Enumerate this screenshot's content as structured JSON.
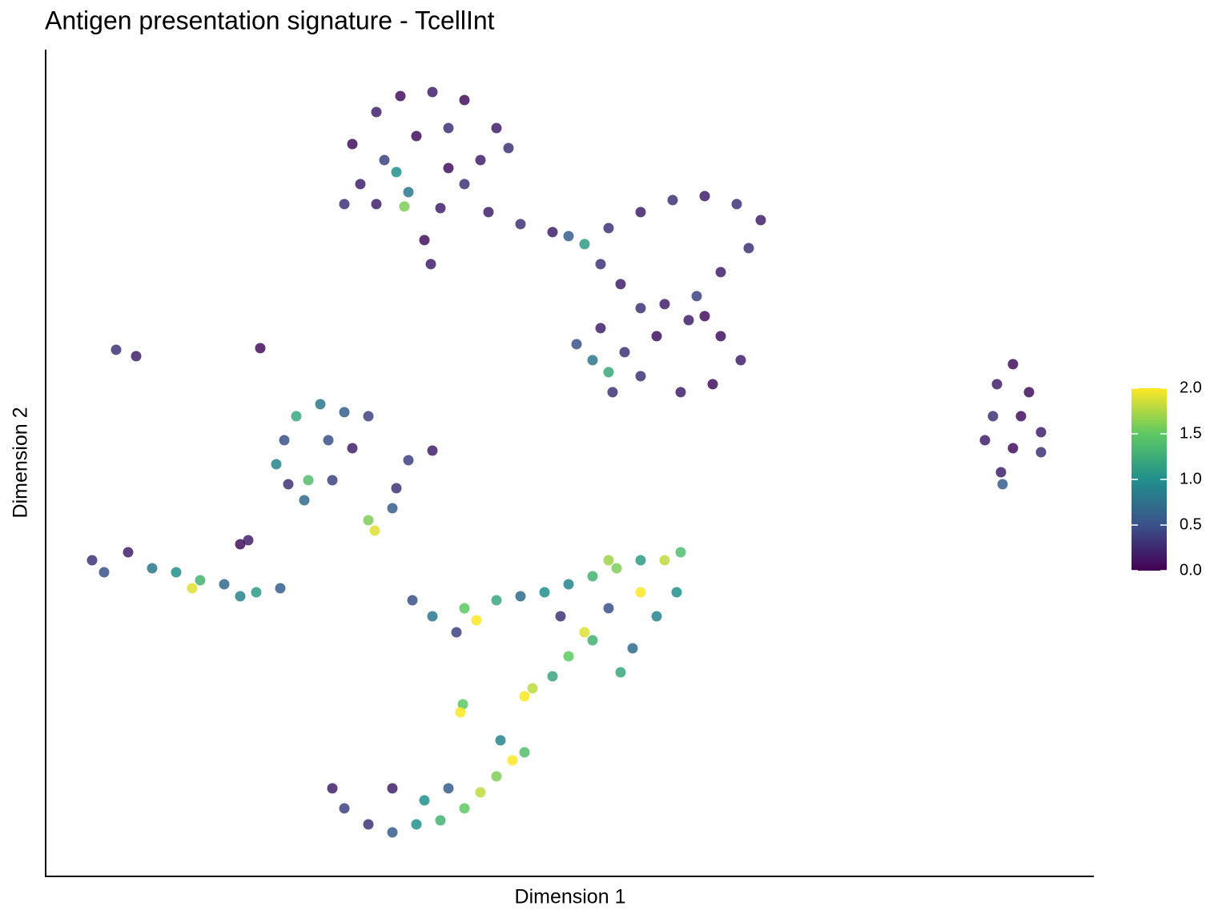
{
  "chart_data": {
    "type": "scatter",
    "title": "Antigen presentation signature - TcellInt",
    "x_label": "Dimension 1",
    "y_label": "Dimension 2",
    "xlim": [
      0,
      1309
    ],
    "ylim": [
      0,
      1033
    ],
    "x": [
      383,
      413,
      443,
      483,
      523,
      563,
      578,
      393,
      423,
      463,
      503,
      543,
      453,
      448,
      493,
      473,
      481,
      373,
      413,
      523,
      438,
      503,
      553,
      593,
      633,
      653,
      673,
      703,
      743,
      783,
      823,
      863,
      893,
      878,
      843,
      813,
      693,
      718,
      743,
      663,
      693,
      723,
      763,
      803,
      843,
      868,
      833,
      793,
      743,
      703,
      708,
      773,
      823,
      683,
      1208,
      1188,
      1228,
      1183,
      1218,
      1243,
      1173,
      1208,
      1243,
      1193,
      1195,
      88,
      113,
      268,
      343,
      373,
      403,
      313,
      298,
      288,
      303,
      323,
      328,
      353,
      383,
      358,
      483,
      453,
      438,
      433,
      403,
      411,
      243,
      253,
      58,
      73,
      103,
      133,
      163,
      193,
      223,
      243,
      263,
      293,
      183,
      458,
      483,
      513,
      523,
      538,
      563,
      593,
      623,
      653,
      683,
      713,
      743,
      773,
      793,
      788,
      763,
      733,
      718,
      703,
      673,
      643,
      743,
      703,
      683,
      653,
      633,
      608,
      598,
      521,
      518,
      358,
      373,
      403,
      433,
      463,
      493,
      523,
      543,
      563,
      583,
      598,
      568,
      433,
      473,
      503
    ],
    "values": [
      915,
      955,
      975,
      980,
      970,
      935,
      910,
      865,
      895,
      925,
      935,
      895,
      855,
      837,
      835,
      795,
      765,
      840,
      840,
      865,
      880,
      885,
      830,
      815,
      805,
      800,
      790,
      810,
      830,
      845,
      850,
      840,
      820,
      785,
      755,
      725,
      765,
      740,
      710,
      665,
      685,
      655,
      675,
      695,
      675,
      645,
      615,
      605,
      625,
      630,
      605,
      715,
      700,
      645,
      640,
      615,
      605,
      575,
      575,
      555,
      545,
      535,
      530,
      505,
      490,
      658,
      650,
      660,
      590,
      580,
      575,
      575,
      545,
      515,
      490,
      470,
      495,
      545,
      535,
      495,
      532,
      520,
      485,
      460,
      445,
      432,
      415,
      420,
      395,
      380,
      405,
      385,
      380,
      370,
      365,
      350,
      355,
      360,
      360,
      345,
      325,
      305,
      335,
      320,
      345,
      350,
      355,
      365,
      375,
      385,
      395,
      395,
      405,
      355,
      325,
      285,
      255,
      335,
      305,
      325,
      355,
      395,
      295,
      275,
      250,
      235,
      225,
      215,
      205,
      110,
      85,
      65,
      55,
      65,
      70,
      85,
      105,
      125,
      145,
      155,
      170,
      110,
      95,
      110
    ],
    "color_values": [
      0.1,
      0.2,
      0.1,
      0.2,
      0.1,
      0.2,
      0.3,
      0.2,
      0.4,
      0.1,
      0.3,
      0.2,
      0.8,
      1.6,
      0.2,
      0.1,
      0.2,
      0.3,
      0.2,
      0.3,
      1.0,
      0.1,
      0.2,
      0.3,
      0.2,
      0.6,
      1.1,
      0.3,
      0.2,
      0.3,
      0.2,
      0.3,
      0.2,
      0.3,
      0.2,
      0.4,
      0.3,
      0.2,
      0.3,
      0.5,
      0.2,
      0.3,
      0.1,
      0.2,
      0.1,
      0.2,
      0.1,
      0.2,
      0.3,
      1.2,
      0.3,
      0.2,
      0.1,
      0.8,
      0.1,
      0.2,
      0.1,
      0.3,
      0.1,
      0.2,
      0.2,
      0.1,
      0.3,
      0.2,
      0.6,
      0.3,
      0.2,
      0.1,
      0.8,
      0.6,
      0.4,
      1.2,
      0.5,
      0.9,
      0.3,
      0.7,
      1.4,
      0.5,
      0.2,
      0.4,
      0.2,
      0.4,
      0.3,
      0.6,
      1.6,
      1.9,
      0.1,
      0.2,
      0.3,
      0.5,
      0.2,
      0.8,
      1.0,
      1.3,
      0.7,
      0.9,
      1.1,
      0.6,
      1.9,
      0.5,
      0.8,
      0.4,
      1.5,
      2.0,
      1.2,
      0.7,
      1.0,
      0.9,
      1.3,
      1.6,
      1.1,
      1.8,
      1.4,
      1.0,
      0.9,
      0.7,
      1.2,
      0.5,
      1.9,
      0.3,
      2.0,
      1.7,
      1.3,
      1.5,
      1.2,
      1.8,
      2.0,
      1.5,
      2.0,
      0.2,
      0.4,
      0.3,
      0.6,
      1.0,
      1.3,
      1.5,
      1.8,
      1.6,
      2.0,
      1.4,
      0.9,
      0.2,
      1.0,
      0.6
    ],
    "clim": [
      0,
      2
    ],
    "cticks": [
      {
        "value": 0,
        "label": "0.0"
      },
      0.5,
      {
        "value": 1,
        "label": "1.0"
      },
      1.5,
      {
        "value": 2,
        "label": "2.0"
      }
    ],
    "colormap": [
      "#440154",
      "#3b528b",
      "#21908c",
      "#5dc863",
      "#fde725"
    ]
  }
}
